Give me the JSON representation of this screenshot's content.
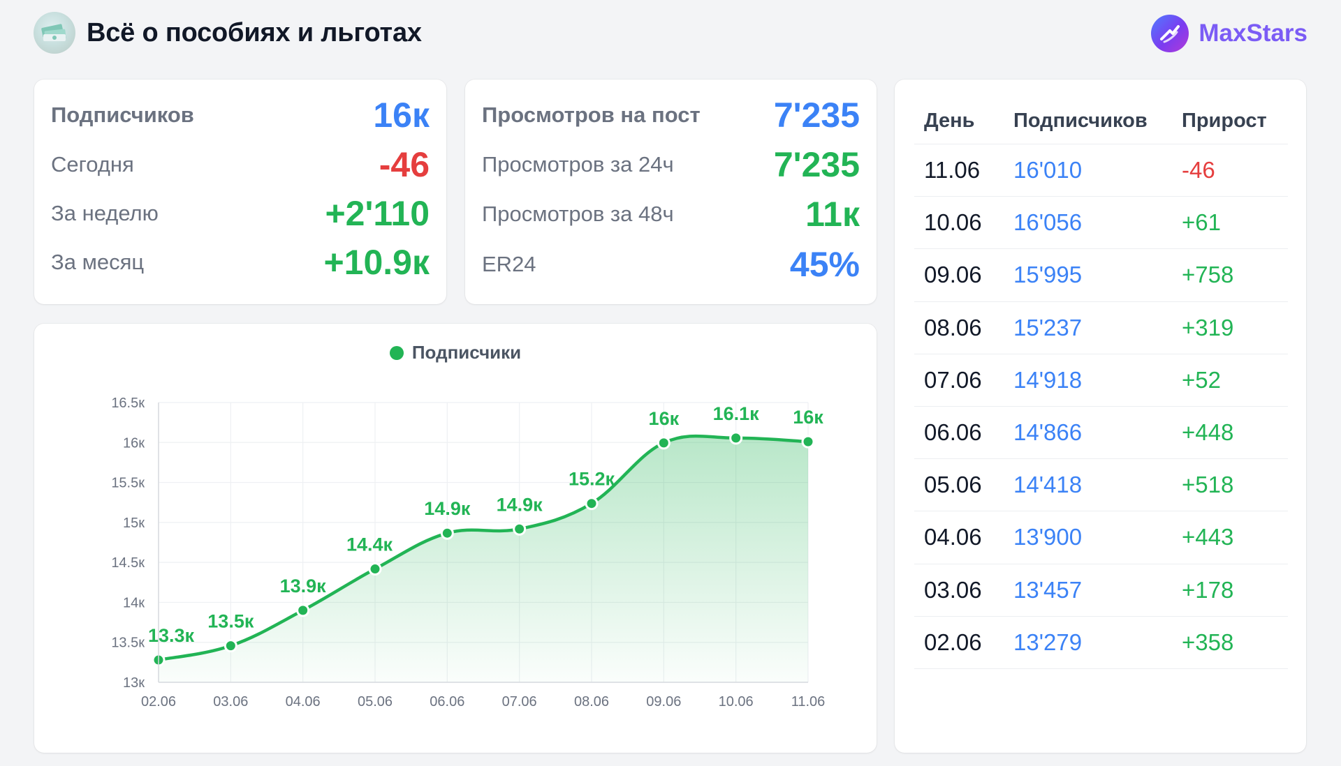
{
  "header": {
    "title": "Всё о пособиях и льготах",
    "brand": "MaxStars"
  },
  "subs_card": {
    "rows": [
      {
        "label": "Подписчиков",
        "value": "16к",
        "color": "#3b82f6"
      },
      {
        "label": "Сегодня",
        "value": "-46",
        "color": "#e53e3e"
      },
      {
        "label": "За неделю",
        "value": "+2'110",
        "color": "#22b455"
      },
      {
        "label": "За месяц",
        "value": "+10.9к",
        "color": "#22b455"
      }
    ]
  },
  "views_card": {
    "rows": [
      {
        "label": "Просмотров на пост",
        "value": "7'235",
        "color": "#3b82f6"
      },
      {
        "label": "Просмотров за 24ч",
        "value": "7'235",
        "color": "#22b455"
      },
      {
        "label": "Просмотров за 48ч",
        "value": "11к",
        "color": "#22b455"
      },
      {
        "label": "ER24",
        "value": "45%",
        "color": "#3b82f6"
      }
    ]
  },
  "table": {
    "headers": [
      "День",
      "Подписчиков",
      "Прирост"
    ],
    "rows": [
      {
        "day": "11.06",
        "subs": "16'010",
        "gain": "-46"
      },
      {
        "day": "10.06",
        "subs": "16'056",
        "gain": "+61"
      },
      {
        "day": "09.06",
        "subs": "15'995",
        "gain": "+758"
      },
      {
        "day": "08.06",
        "subs": "15'237",
        "gain": "+319"
      },
      {
        "day": "07.06",
        "subs": "14'918",
        "gain": "+52"
      },
      {
        "day": "06.06",
        "subs": "14'866",
        "gain": "+448"
      },
      {
        "day": "05.06",
        "subs": "14'418",
        "gain": "+518"
      },
      {
        "day": "04.06",
        "subs": "13'900",
        "gain": "+443"
      },
      {
        "day": "03.06",
        "subs": "13'457",
        "gain": "+178"
      },
      {
        "day": "02.06",
        "subs": "13'279",
        "gain": "+358"
      }
    ]
  },
  "colors": {
    "accent_green": "#22b455",
    "accent_blue": "#3b82f6",
    "accent_red": "#e53e3e",
    "brand_purple": "#7b5cf5"
  },
  "chart_data": {
    "type": "area",
    "title": "",
    "xlabel": "",
    "ylabel": "",
    "x": [
      "02.06",
      "03.06",
      "04.06",
      "05.06",
      "06.06",
      "07.06",
      "08.06",
      "09.06",
      "10.06",
      "11.06"
    ],
    "series": [
      {
        "name": "Подписчики",
        "values": [
          13279,
          13457,
          13900,
          14418,
          14866,
          14918,
          15237,
          15995,
          16056,
          16010
        ],
        "data_labels": [
          "13.3к",
          "13.5к",
          "13.9к",
          "14.4к",
          "14.9к",
          "14.9к",
          "15.2к",
          "16к",
          "16.1к",
          "16к"
        ]
      }
    ],
    "ylim": [
      13000,
      16500
    ],
    "yticks": [
      13000,
      13500,
      14000,
      14500,
      15000,
      15500,
      16000,
      16500
    ],
    "ytick_labels": [
      "13к",
      "13.5к",
      "14к",
      "14.5к",
      "15к",
      "15.5к",
      "16к",
      "16.5к"
    ],
    "grid": true,
    "legend_position": "top-center"
  }
}
